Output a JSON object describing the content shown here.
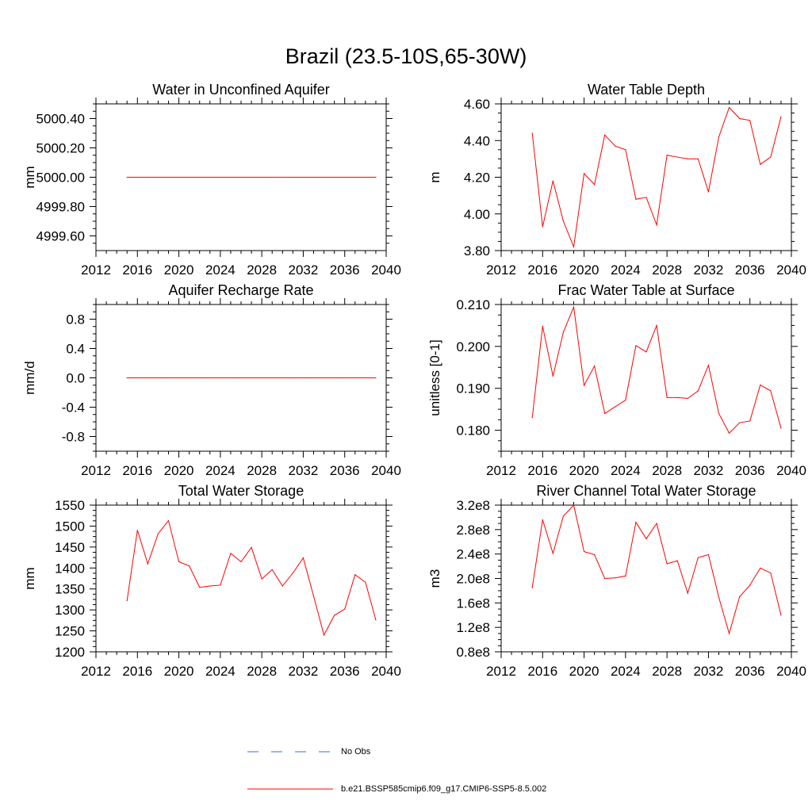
{
  "figure": {
    "title": "Brazil (23.5-10S,65-30W)"
  },
  "chart_data": [
    {
      "type": "line",
      "title": "Water in Unconfined Aquifer",
      "xlabel": "",
      "ylabel": "mm",
      "xlim": [
        2012,
        2040
      ],
      "xticks": [
        "2012",
        "2016",
        "2020",
        "2024",
        "2028",
        "2032",
        "2036",
        "2040"
      ],
      "ylim": [
        4999.5,
        5000.5
      ],
      "yticks": [
        "4999.60",
        "4999.80",
        "5000.00",
        "5000.20",
        "5000.40"
      ],
      "x": [
        2015,
        2016,
        2017,
        2018,
        2019,
        2020,
        2021,
        2022,
        2023,
        2024,
        2025,
        2026,
        2027,
        2028,
        2029,
        2030,
        2031,
        2032,
        2033,
        2034,
        2035,
        2036,
        2037,
        2038,
        2039
      ],
      "series": [
        {
          "values": [
            5000,
            5000,
            5000,
            5000,
            5000,
            5000,
            5000,
            5000,
            5000,
            5000,
            5000,
            5000,
            5000,
            5000,
            5000,
            5000,
            5000,
            5000,
            5000,
            5000,
            5000,
            5000,
            5000,
            5000,
            5000
          ]
        }
      ]
    },
    {
      "type": "line",
      "title": "Water Table Depth",
      "xlabel": "",
      "ylabel": "m",
      "xlim": [
        2012,
        2040
      ],
      "xticks": [
        "2012",
        "2016",
        "2020",
        "2024",
        "2028",
        "2032",
        "2036",
        "2040"
      ],
      "ylim": [
        3.8,
        4.6
      ],
      "yticks": [
        "3.80",
        "4.00",
        "4.20",
        "4.40",
        "4.60"
      ],
      "x": [
        2015,
        2016,
        2017,
        2018,
        2019,
        2020,
        2021,
        2022,
        2023,
        2024,
        2025,
        2026,
        2027,
        2028,
        2029,
        2030,
        2031,
        2032,
        2033,
        2034,
        2035,
        2036,
        2037,
        2038,
        2039
      ],
      "series": [
        {
          "values": [
            4.44,
            3.93,
            4.18,
            3.96,
            3.82,
            4.22,
            4.16,
            4.43,
            4.37,
            4.35,
            4.08,
            4.09,
            3.94,
            4.32,
            4.31,
            4.3,
            4.3,
            4.12,
            4.42,
            4.58,
            4.52,
            4.51,
            4.27,
            4.31,
            4.53
          ]
        }
      ]
    },
    {
      "type": "line",
      "title": "Aquifer Recharge Rate",
      "xlabel": "",
      "ylabel": "mm/d",
      "xlim": [
        2012,
        2040
      ],
      "xticks": [
        "2012",
        "2016",
        "2020",
        "2024",
        "2028",
        "2032",
        "2036",
        "2040"
      ],
      "ylim": [
        -1.0,
        1.0
      ],
      "yticks": [
        "-0.8",
        "-0.4",
        "0.0",
        "0.4",
        "0.8"
      ],
      "x": [
        2015,
        2016,
        2017,
        2018,
        2019,
        2020,
        2021,
        2022,
        2023,
        2024,
        2025,
        2026,
        2027,
        2028,
        2029,
        2030,
        2031,
        2032,
        2033,
        2034,
        2035,
        2036,
        2037,
        2038,
        2039
      ],
      "series": [
        {
          "values": [
            0,
            0,
            0,
            0,
            0,
            0,
            0,
            0,
            0,
            0,
            0,
            0,
            0,
            0,
            0,
            0,
            0,
            0,
            0,
            0,
            0,
            0,
            0,
            0,
            0
          ]
        }
      ]
    },
    {
      "type": "line",
      "title": "Frac Water Table at Surface",
      "xlabel": "",
      "ylabel": "unitless [0-1]",
      "xlim": [
        2012,
        2040
      ],
      "xticks": [
        "2012",
        "2016",
        "2020",
        "2024",
        "2028",
        "2032",
        "2036",
        "2040"
      ],
      "ylim": [
        0.175,
        0.21
      ],
      "yticks": [
        "0.180",
        "0.190",
        "0.200",
        "0.210"
      ],
      "x": [
        2015,
        2016,
        2017,
        2018,
        2019,
        2020,
        2021,
        2022,
        2023,
        2024,
        2025,
        2026,
        2027,
        2028,
        2029,
        2030,
        2031,
        2032,
        2033,
        2034,
        2035,
        2036,
        2037,
        2038,
        2039
      ],
      "series": [
        {
          "values": [
            0.183,
            0.2048,
            0.1929,
            0.2034,
            0.2094,
            0.1907,
            0.1953,
            0.184,
            0.1856,
            0.1872,
            0.2002,
            0.1987,
            0.205,
            0.1878,
            0.1878,
            0.1876,
            0.1894,
            0.1955,
            0.184,
            0.1793,
            0.1818,
            0.1822,
            0.1908,
            0.1894,
            0.1805
          ]
        }
      ]
    },
    {
      "type": "line",
      "title": "Total Water Storage",
      "xlabel": "",
      "ylabel": "mm",
      "xlim": [
        2012,
        2040
      ],
      "xticks": [
        "2012",
        "2016",
        "2020",
        "2024",
        "2028",
        "2032",
        "2036",
        "2040"
      ],
      "ylim": [
        1200,
        1550
      ],
      "yticks": [
        "1200",
        "1250",
        "1300",
        "1350",
        "1400",
        "1450",
        "1500",
        "1550"
      ],
      "x": [
        2015,
        2016,
        2017,
        2018,
        2019,
        2020,
        2021,
        2022,
        2023,
        2024,
        2025,
        2026,
        2027,
        2028,
        2029,
        2030,
        2031,
        2032,
        2033,
        2034,
        2035,
        2036,
        2037,
        2038,
        2039
      ],
      "series": [
        {
          "values": [
            1322,
            1490,
            1410,
            1482,
            1513,
            1415,
            1405,
            1354,
            1357,
            1359,
            1435,
            1415,
            1449,
            1374,
            1396,
            1357,
            1388,
            1424,
            1333,
            1240,
            1287,
            1302,
            1384,
            1366,
            1276
          ]
        }
      ]
    },
    {
      "type": "line",
      "title": "River Channel Total Water Storage",
      "xlabel": "",
      "ylabel": "m3",
      "xlim": [
        2012,
        2040
      ],
      "xticks": [
        "2012",
        "2016",
        "2020",
        "2024",
        "2028",
        "2032",
        "2036",
        "2040"
      ],
      "ylim": [
        80000000.0,
        320000000.0
      ],
      "yticks": [
        "0.8e8",
        "1.2e8",
        "1.6e8",
        "2.0e8",
        "2.4e8",
        "2.8e8",
        "3.2e8"
      ],
      "x": [
        2015,
        2016,
        2017,
        2018,
        2019,
        2020,
        2021,
        2022,
        2023,
        2024,
        2025,
        2026,
        2027,
        2028,
        2029,
        2030,
        2031,
        2032,
        2033,
        2034,
        2035,
        2036,
        2037,
        2038,
        2039
      ],
      "series": [
        {
          "values": [
            185000000.0,
            296000000.0,
            241000000.0,
            302000000.0,
            320000000.0,
            244000000.0,
            239000000.0,
            200000000.0,
            201000000.0,
            204000000.0,
            292000000.0,
            265000000.0,
            290000000.0,
            224000000.0,
            229000000.0,
            176000000.0,
            234000000.0,
            239000000.0,
            169000000.0,
            110000000.0,
            170000000.0,
            189000000.0,
            217000000.0,
            209000000.0,
            140000000.0
          ]
        }
      ]
    }
  ],
  "legend": [
    {
      "label": "No Obs",
      "color": "#4169e1",
      "style": "dashed"
    },
    {
      "label": "b.e21.BSSP585cmip6.f09_g17.CMIP6-SSP5-8.5.002",
      "color": "#ff0000",
      "style": "solid"
    }
  ]
}
